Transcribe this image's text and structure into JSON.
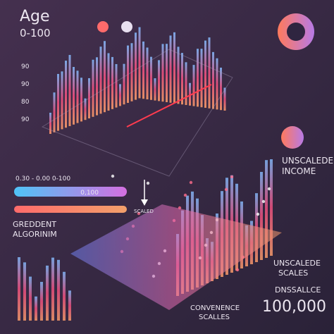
{
  "header": {
    "title": "Age",
    "range": "0-100"
  },
  "left_panel": {
    "axis_labels": [
      "90",
      "90",
      "80",
      "90"
    ],
    "range_text": "0.30 - 0.00   0-100",
    "slider_label": "0,100",
    "gradient_label": [
      "GREDDENT",
      "ALGORINIM"
    ]
  },
  "right_panel": {
    "label_top": [
      "UNSCALEDE",
      "INCOME"
    ],
    "label_mid": [
      "UNSCALEDE",
      "SCALES"
    ],
    "label_small": "DNSSALLCE",
    "big_value": "100,000",
    "bottom": [
      "CONVENENCE",
      "SCALLES"
    ]
  },
  "arrow_label": "SCALED"
}
